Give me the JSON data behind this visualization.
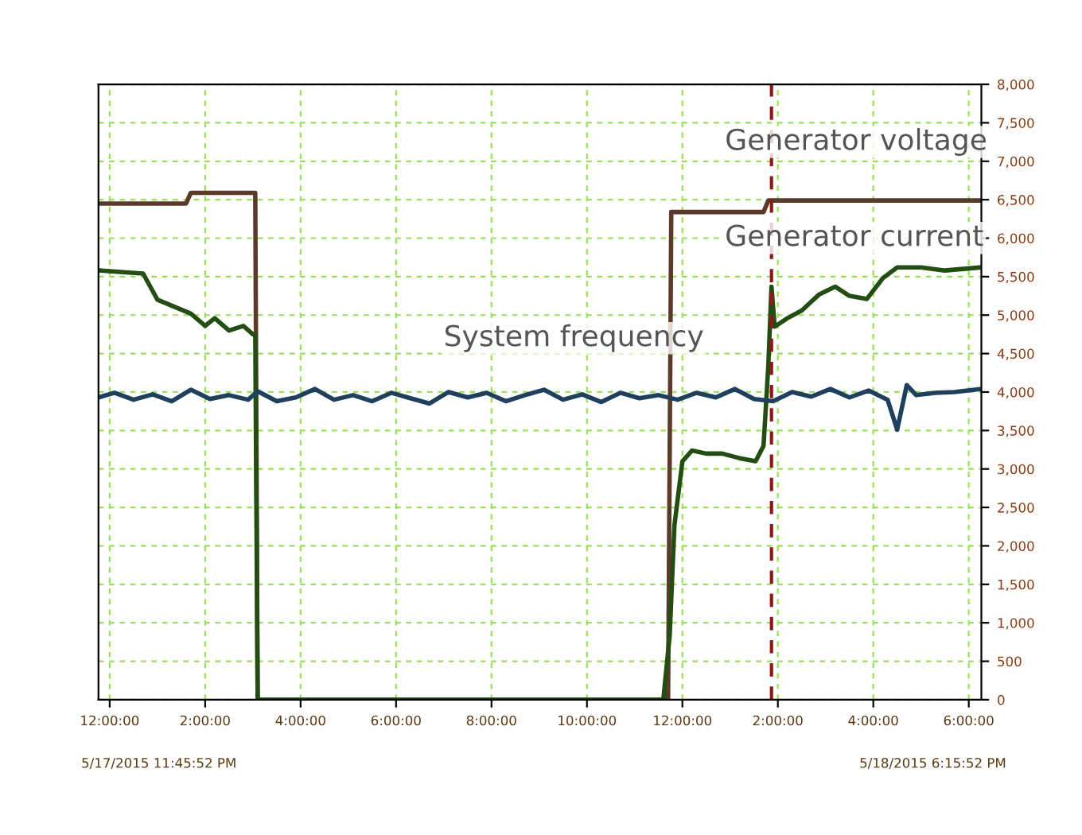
{
  "chart_data": {
    "type": "line",
    "xlim": [
      "2015-05-17T23:45:52",
      "2015-05-18T18:15:52"
    ],
    "xticks": [
      {
        "value": "2015-05-18T00:00",
        "label": "12:00:00"
      },
      {
        "value": "2015-05-18T02:00",
        "label": "2:00:00"
      },
      {
        "value": "2015-05-18T04:00",
        "label": "4:00:00"
      },
      {
        "value": "2015-05-18T06:00",
        "label": "6:00:00"
      },
      {
        "value": "2015-05-18T08:00",
        "label": "8:00:00"
      },
      {
        "value": "2015-05-18T10:00",
        "label": "10:00:00"
      },
      {
        "value": "2015-05-18T12:00",
        "label": "12:00:00"
      },
      {
        "value": "2015-05-18T14:00",
        "label": "2:00:00"
      },
      {
        "value": "2015-05-18T16:00",
        "label": "4:00:00"
      },
      {
        "value": "2015-05-18T18:00",
        "label": "6:00:00"
      }
    ],
    "ylim": [
      0,
      8000
    ],
    "yticks": [
      0,
      500,
      {
        "value": 1000,
        "label": "1,000"
      },
      {
        "value": 1500,
        "label": "1,500"
      },
      {
        "value": 2000,
        "label": "2,000"
      },
      {
        "value": 2500,
        "label": "2,500"
      },
      {
        "value": 3000,
        "label": "3,000"
      },
      {
        "value": 3500,
        "label": "3,500"
      },
      {
        "value": 4000,
        "label": "4,000"
      },
      {
        "value": 4500,
        "label": "4,500"
      },
      {
        "value": 5000,
        "label": "5,000"
      },
      {
        "value": 5500,
        "label": "5,500"
      },
      {
        "value": 6000,
        "label": "6,000"
      },
      {
        "value": 6500,
        "label": "6,500"
      },
      {
        "value": 7000,
        "label": "7,000"
      },
      {
        "value": 7500,
        "label": "7,500"
      },
      {
        "value": 8000,
        "label": "8,000"
      }
    ],
    "grid": true,
    "series": [
      {
        "color": "#5a3a2a",
        "x": [
          "2015-05-17T23:46",
          "2015-05-18T01:36",
          "2015-05-18T01:42",
          "2015-05-18T03:03",
          "2015-05-18T03:06",
          "2015-05-18T11:42",
          "2015-05-18T11:46",
          "2015-05-18T13:42",
          "2015-05-18T13:48",
          "2015-05-18T18:15"
        ],
        "values": [
          6450,
          6450,
          6590,
          6590,
          0,
          0,
          6340,
          6340,
          6490,
          6490
        ]
      },
      {
        "color": "#234d12",
        "x": [
          "2015-05-17T23:46",
          "2015-05-18T00:42",
          "2015-05-18T01:00",
          "2015-05-18T01:42",
          "2015-05-18T02:00",
          "2015-05-18T02:12",
          "2015-05-18T02:30",
          "2015-05-18T02:48",
          "2015-05-18T03:00",
          "2015-05-18T03:03",
          "2015-05-18T03:06",
          "2015-05-18T11:36",
          "2015-05-18T11:44",
          "2015-05-18T11:50",
          "2015-05-18T12:00",
          "2015-05-18T12:12",
          "2015-05-18T12:30",
          "2015-05-18T12:50",
          "2015-05-18T13:12",
          "2015-05-18T13:32",
          "2015-05-18T13:42",
          "2015-05-18T13:48",
          "2015-05-18T13:52",
          "2015-05-18T13:56",
          "2015-05-18T14:12",
          "2015-05-18T14:30",
          "2015-05-18T14:52",
          "2015-05-18T15:12",
          "2015-05-18T15:30",
          "2015-05-18T15:52",
          "2015-05-18T16:12",
          "2015-05-18T16:30",
          "2015-05-18T17:00",
          "2015-05-18T17:30",
          "2015-05-18T18:15"
        ],
        "values": [
          5580,
          5540,
          5200,
          5020,
          4860,
          4960,
          4800,
          4860,
          4750,
          4750,
          0,
          0,
          830,
          2270,
          3100,
          3240,
          3200,
          3200,
          3140,
          3100,
          3300,
          4340,
          5370,
          4850,
          4960,
          5060,
          5270,
          5370,
          5250,
          5210,
          5480,
          5620,
          5620,
          5580,
          5620
        ]
      },
      {
        "color": "#1f3f5f",
        "x": [
          "2015-05-17T23:46",
          "2015-05-18T00:06",
          "2015-05-18T00:30",
          "2015-05-18T00:54",
          "2015-05-18T01:18",
          "2015-05-18T01:42",
          "2015-05-18T02:06",
          "2015-05-18T02:30",
          "2015-05-18T02:54",
          "2015-05-18T03:06",
          "2015-05-18T03:30",
          "2015-05-18T03:54",
          "2015-05-18T04:18",
          "2015-05-18T04:42",
          "2015-05-18T05:06",
          "2015-05-18T05:30",
          "2015-05-18T05:54",
          "2015-05-18T06:18",
          "2015-05-18T06:42",
          "2015-05-18T07:06",
          "2015-05-18T07:30",
          "2015-05-18T07:54",
          "2015-05-18T08:18",
          "2015-05-18T08:42",
          "2015-05-18T09:06",
          "2015-05-18T09:30",
          "2015-05-18T09:54",
          "2015-05-18T10:18",
          "2015-05-18T10:42",
          "2015-05-18T11:06",
          "2015-05-18T11:30",
          "2015-05-18T11:54",
          "2015-05-18T12:18",
          "2015-05-18T12:42",
          "2015-05-18T13:06",
          "2015-05-18T13:30",
          "2015-05-18T13:54",
          "2015-05-18T14:18",
          "2015-05-18T14:42",
          "2015-05-18T15:06",
          "2015-05-18T15:30",
          "2015-05-18T15:54",
          "2015-05-18T16:18",
          "2015-05-18T16:30",
          "2015-05-18T16:42",
          "2015-05-18T16:54",
          "2015-05-18T17:18",
          "2015-05-18T17:42",
          "2015-05-18T18:15"
        ],
        "values": [
          3930,
          3990,
          3900,
          3970,
          3880,
          4030,
          3910,
          3960,
          3900,
          4010,
          3880,
          3930,
          4040,
          3900,
          3960,
          3880,
          3990,
          3920,
          3850,
          4000,
          3930,
          3990,
          3880,
          3960,
          4030,
          3900,
          3970,
          3870,
          3990,
          3920,
          3960,
          3900,
          3990,
          3930,
          4040,
          3910,
          3880,
          4000,
          3940,
          4040,
          3930,
          4020,
          3900,
          3510,
          4090,
          3960,
          3990,
          4000,
          4040
        ]
      }
    ],
    "ref_lines": [
      {
        "axis": "x",
        "value": "2015-05-18T13:52",
        "color": "#8b1a1a",
        "line_style": "dashed"
      }
    ],
    "annotations": [
      "Generator voltage",
      "Generator current",
      "System frequency",
      "5/17/2015 11:45:52 PM",
      "5/18/2015 6:15:52 PM"
    ]
  }
}
